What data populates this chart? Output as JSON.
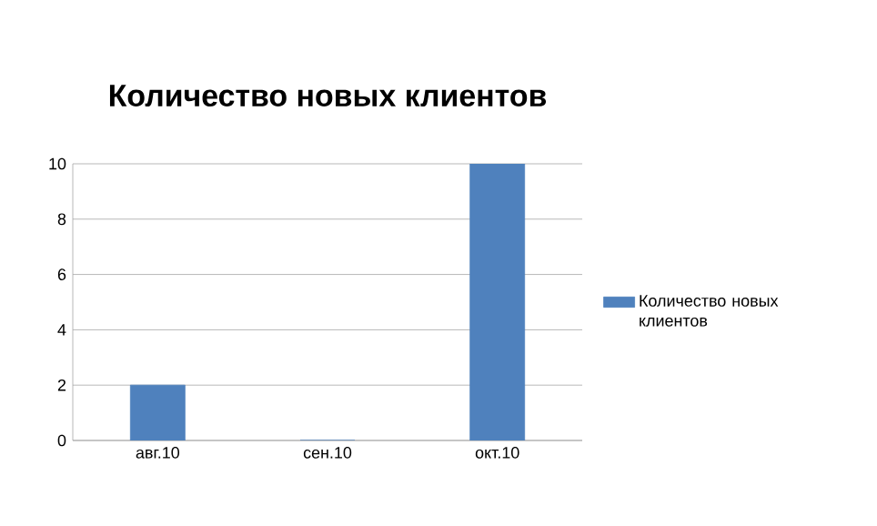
{
  "chart_data": {
    "type": "bar",
    "title": "Количество новых клиентов",
    "categories": [
      "авг.10",
      "сен.10",
      "окт.10"
    ],
    "series": [
      {
        "name": "Количество новых клиентов",
        "color": "#4f81bd",
        "values": [
          2,
          0,
          10
        ]
      }
    ],
    "ylim": [
      0,
      10
    ],
    "yticks": [
      0,
      2,
      4,
      6,
      8,
      10
    ],
    "grid": "y",
    "legend": "right"
  }
}
